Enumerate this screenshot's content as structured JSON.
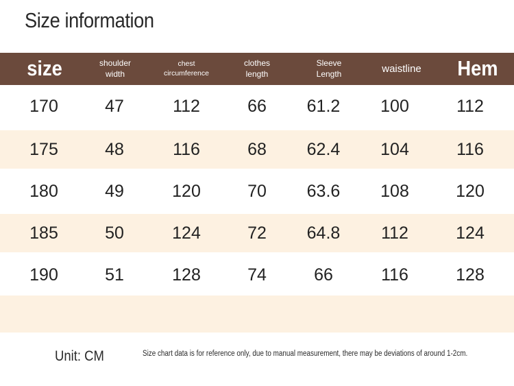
{
  "title": "Size information",
  "columns": [
    {
      "label": "size"
    },
    {
      "label": "shoulder\nwidth"
    },
    {
      "label": "chest\ncircumference"
    },
    {
      "label": "clothes\nlength"
    },
    {
      "label": "Sleeve\nLength"
    },
    {
      "label": "waistline"
    },
    {
      "label": "Hem"
    }
  ],
  "rows": [
    [
      "170",
      "47",
      "112",
      "66",
      "61.2",
      "100",
      "112"
    ],
    [
      "175",
      "48",
      "116",
      "68",
      "62.4",
      "104",
      "116"
    ],
    [
      "180",
      "49",
      "120",
      "70",
      "63.6",
      "108",
      "120"
    ],
    [
      "185",
      "50",
      "124",
      "72",
      "64.8",
      "112",
      "124"
    ],
    [
      "190",
      "51",
      "128",
      "74",
      "66",
      "116",
      "128"
    ]
  ],
  "footer": {
    "unit": "Unit: CM",
    "note": "Size chart data is for reference only, due to manual measurement, there may be deviations of around 1-2cm."
  },
  "colors": {
    "header_bg": "#6b4a3c",
    "alt_row_bg": "#fdf1e1",
    "header_text": "#ffffff"
  }
}
